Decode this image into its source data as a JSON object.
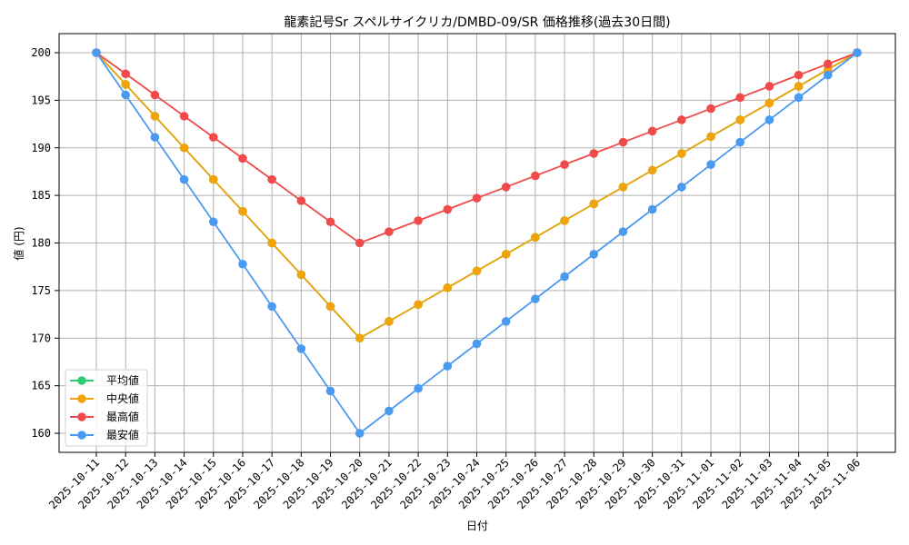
{
  "chart_data": {
    "type": "line",
    "title": "龍素記号Sr スペルサイクリカ/DMBD-09/SR 価格推移(過去30日間)",
    "xlabel": "日付",
    "ylabel": "値 (円)",
    "ylim": [
      158,
      202
    ],
    "yticks": [
      160,
      165,
      170,
      175,
      180,
      185,
      190,
      195,
      200
    ],
    "grid": true,
    "legend_position": "lower left",
    "x": [
      "2025-10-11",
      "2025-10-12",
      "2025-10-13",
      "2025-10-14",
      "2025-10-15",
      "2025-10-16",
      "2025-10-17",
      "2025-10-18",
      "2025-10-19",
      "2025-10-20",
      "2025-10-21",
      "2025-10-22",
      "2025-10-23",
      "2025-10-24",
      "2025-10-25",
      "2025-10-26",
      "2025-10-27",
      "2025-10-28",
      "2025-10-29",
      "2025-10-30",
      "2025-10-31",
      "2025-11-01",
      "2025-11-02",
      "2025-11-03",
      "2025-11-04",
      "2025-11-05",
      "2025-11-06"
    ],
    "series": [
      {
        "name": "平均値",
        "color": "#2ecc71",
        "values": [
          200,
          196.67,
          193.33,
          190,
          186.67,
          183.33,
          180,
          176.67,
          173.33,
          170,
          171.76,
          173.53,
          175.29,
          177.06,
          178.82,
          180.59,
          182.35,
          184.12,
          185.88,
          187.65,
          189.41,
          191.18,
          192.94,
          194.71,
          196.47,
          198.24,
          200
        ]
      },
      {
        "name": "中央値",
        "color": "#f0a30a",
        "values": [
          200,
          196.67,
          193.33,
          190,
          186.67,
          183.33,
          180,
          176.67,
          173.33,
          170,
          171.76,
          173.53,
          175.29,
          177.06,
          178.82,
          180.59,
          182.35,
          184.12,
          185.88,
          187.65,
          189.41,
          191.18,
          192.94,
          194.71,
          196.47,
          198.24,
          200
        ]
      },
      {
        "name": "最高値",
        "color": "#f04a4a",
        "values": [
          200,
          197.78,
          195.56,
          193.33,
          191.11,
          188.89,
          186.67,
          184.44,
          182.22,
          180,
          181.18,
          182.35,
          183.53,
          184.71,
          185.88,
          187.06,
          188.24,
          189.41,
          190.59,
          191.76,
          192.94,
          194.12,
          195.29,
          196.47,
          197.65,
          198.82,
          200
        ]
      },
      {
        "name": "最安値",
        "color": "#4a9af0",
        "values": [
          200,
          195.56,
          191.11,
          186.67,
          182.22,
          177.78,
          173.33,
          168.89,
          164.44,
          160,
          162.35,
          164.71,
          167.06,
          169.41,
          171.76,
          174.12,
          176.47,
          178.82,
          181.18,
          183.53,
          185.88,
          188.24,
          190.59,
          192.94,
          195.29,
          197.65,
          200
        ]
      }
    ]
  }
}
